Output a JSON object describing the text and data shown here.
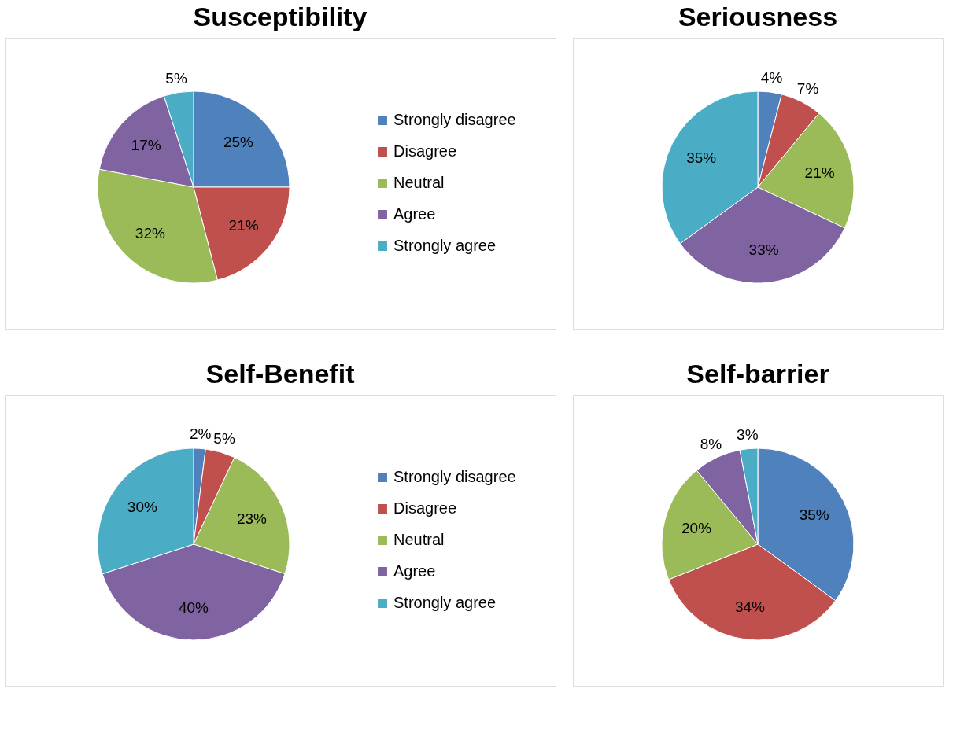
{
  "chart_data": [
    {
      "type": "pie",
      "title": "Susceptibility",
      "categories": [
        "Strongly disagree",
        "Disagree",
        "Neutral",
        "Agree",
        "Strongly agree"
      ],
      "values": [
        25,
        21,
        32,
        17,
        5
      ],
      "value_labels": [
        "25%",
        "21%",
        "32%",
        "17%",
        "5%"
      ],
      "colors": [
        "#4f81bd",
        "#c0504d",
        "#9bbb59",
        "#8064a2",
        "#4bacc6"
      ],
      "legend": "right"
    },
    {
      "type": "pie",
      "title": "Seriousness",
      "categories": [
        null,
        null,
        null,
        null,
        null
      ],
      "values": [
        4,
        7,
        21,
        33,
        35
      ],
      "value_labels": [
        "4%",
        "7%",
        "21%",
        "33%",
        "35%"
      ],
      "colors": [
        "#4f81bd",
        "#c0504d",
        "#9bbb59",
        "#8064a2",
        "#4bacc6"
      ],
      "legend": false
    },
    {
      "type": "pie",
      "title": "Self-Benefit",
      "categories": [
        "Strongly disagree",
        "Disagree",
        "Neutral",
        "Agree",
        "Strongly agree"
      ],
      "values": [
        2,
        5,
        23,
        40,
        30
      ],
      "value_labels": [
        "2%",
        "5%",
        "23%",
        "40%",
        "30%"
      ],
      "colors": [
        "#4f81bd",
        "#c0504d",
        "#9bbb59",
        "#8064a2",
        "#4bacc6"
      ],
      "legend": "right"
    },
    {
      "type": "pie",
      "title": "Self-barrier",
      "categories": [
        null,
        null,
        null,
        null,
        null
      ],
      "values": [
        35,
        34,
        20,
        8,
        3
      ],
      "value_labels": [
        "35%",
        "34%",
        "20%",
        "8%",
        "3%"
      ],
      "colors": [
        "#4f81bd",
        "#c0504d",
        "#9bbb59",
        "#8064a2",
        "#4bacc6"
      ],
      "legend": false
    }
  ]
}
